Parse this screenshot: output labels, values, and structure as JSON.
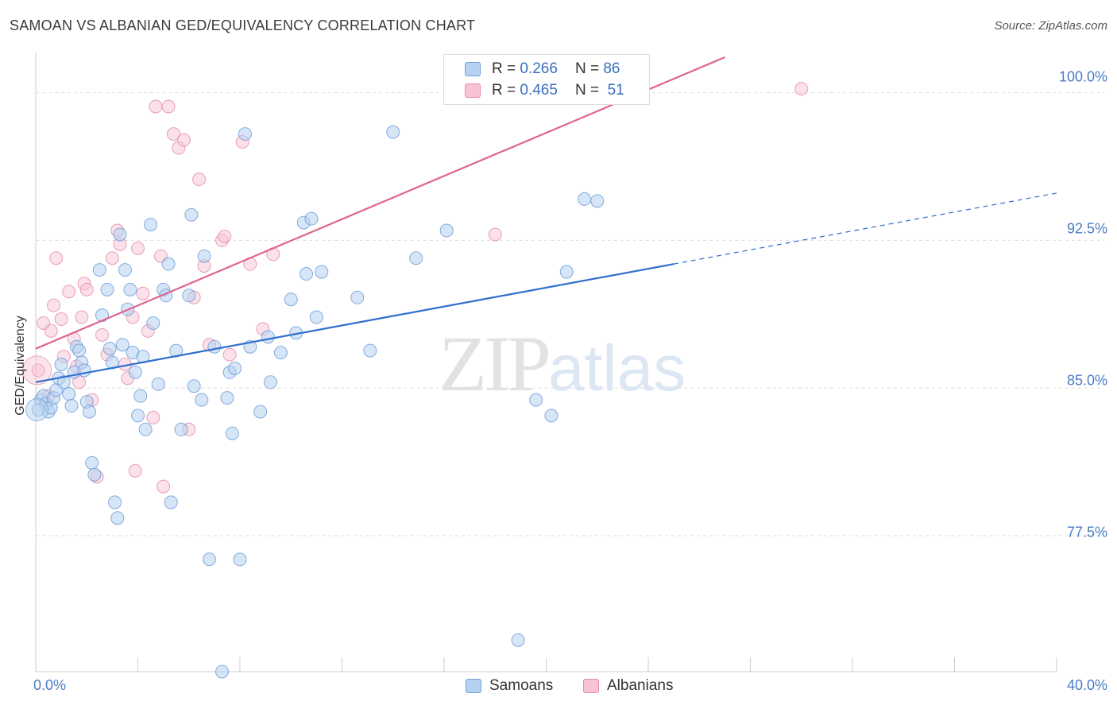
{
  "header": {
    "title": "SAMOAN VS ALBANIAN GED/EQUIVALENCY CORRELATION CHART",
    "source": "Source: ZipAtlas.com"
  },
  "watermark": {
    "zip": "ZIP",
    "atlas": "atlas"
  },
  "legend": {
    "rows": [
      {
        "r_label": "R =",
        "r_value": "0.266",
        "n_label": "N =",
        "n_value": "86"
      },
      {
        "r_label": "R =",
        "r_value": "0.465",
        "n_label": "N =",
        "n_value": "51"
      }
    ]
  },
  "bottom_legend": {
    "samoans": "Samoans",
    "albanians": "Albanians"
  },
  "axis": {
    "ylabel": "GED/Equivalency",
    "y_ticks": [
      "100.0%",
      "92.5%",
      "85.0%",
      "77.5%"
    ],
    "x_ticks": [
      "0.0%",
      "40.0%"
    ]
  },
  "colors": {
    "samoan_fill": "#b7d1f0",
    "samoan_stroke": "#6f9fd8",
    "samoan_line": "#2f6fce",
    "albanian_fill": "#f8c3d3",
    "albanian_stroke": "#e48aa8",
    "albanian_line": "#e0648e"
  },
  "chart_data": {
    "type": "scatter",
    "title": "SAMOAN VS ALBANIAN GED/EQUIVALENCY CORRELATION CHART",
    "xlabel": "",
    "ylabel": "GED/Equivalency",
    "xlim": [
      0,
      40
    ],
    "ylim": [
      70.6,
      101.8
    ],
    "y_gridlines": [
      77.5,
      85.0,
      92.5,
      100.0
    ],
    "legend_position": "top-center",
    "series": [
      {
        "name": "Samoans",
        "R": 0.266,
        "N": 86,
        "trend": {
          "x": [
            0,
            25
          ],
          "y": [
            85.3,
            91.3
          ],
          "dashed_to_x": 40,
          "dashed_to_y": 94.9
        },
        "points": [
          [
            0.2,
            84.4
          ],
          [
            0.3,
            84.6
          ],
          [
            0.4,
            84.2
          ],
          [
            0.5,
            83.8
          ],
          [
            0.6,
            84.0
          ],
          [
            0.7,
            84.5
          ],
          [
            0.8,
            84.9
          ],
          [
            0.9,
            85.5
          ],
          [
            1.0,
            86.2
          ],
          [
            1.1,
            85.3
          ],
          [
            1.3,
            84.7
          ],
          [
            1.4,
            84.1
          ],
          [
            1.5,
            85.8
          ],
          [
            1.6,
            87.1
          ],
          [
            1.7,
            86.9
          ],
          [
            1.8,
            86.3
          ],
          [
            1.9,
            85.9
          ],
          [
            2.0,
            84.3
          ],
          [
            2.1,
            83.8
          ],
          [
            2.2,
            81.2
          ],
          [
            2.3,
            80.6
          ],
          [
            2.5,
            91.0
          ],
          [
            2.6,
            88.7
          ],
          [
            2.8,
            90.0
          ],
          [
            2.9,
            87.0
          ],
          [
            3.0,
            86.3
          ],
          [
            3.1,
            79.2
          ],
          [
            3.2,
            78.4
          ],
          [
            3.3,
            92.8
          ],
          [
            3.4,
            87.2
          ],
          [
            3.5,
            91.0
          ],
          [
            3.6,
            89.0
          ],
          [
            3.7,
            90.0
          ],
          [
            3.8,
            86.8
          ],
          [
            3.9,
            85.8
          ],
          [
            4.0,
            83.6
          ],
          [
            4.1,
            84.6
          ],
          [
            4.2,
            86.6
          ],
          [
            4.3,
            82.9
          ],
          [
            4.5,
            93.3
          ],
          [
            4.6,
            88.3
          ],
          [
            4.8,
            85.2
          ],
          [
            5.0,
            90.0
          ],
          [
            5.1,
            89.7
          ],
          [
            5.2,
            91.3
          ],
          [
            5.3,
            79.2
          ],
          [
            5.5,
            86.9
          ],
          [
            5.7,
            82.9
          ],
          [
            6.0,
            89.7
          ],
          [
            6.1,
            93.8
          ],
          [
            6.2,
            85.1
          ],
          [
            6.5,
            84.4
          ],
          [
            6.6,
            91.7
          ],
          [
            6.8,
            76.3
          ],
          [
            7.0,
            87.1
          ],
          [
            7.3,
            70.6
          ],
          [
            7.5,
            84.5
          ],
          [
            7.6,
            85.8
          ],
          [
            7.7,
            82.7
          ],
          [
            7.8,
            86.0
          ],
          [
            8.0,
            76.3
          ],
          [
            8.2,
            97.9
          ],
          [
            8.4,
            87.1
          ],
          [
            8.8,
            83.8
          ],
          [
            9.1,
            87.6
          ],
          [
            9.2,
            85.3
          ],
          [
            9.6,
            86.8
          ],
          [
            10.0,
            89.5
          ],
          [
            10.2,
            87.8
          ],
          [
            10.5,
            93.4
          ],
          [
            10.6,
            90.8
          ],
          [
            10.8,
            93.6
          ],
          [
            11.0,
            88.6
          ],
          [
            11.2,
            90.9
          ],
          [
            12.6,
            89.6
          ],
          [
            13.1,
            86.9
          ],
          [
            14.0,
            98.0
          ],
          [
            14.9,
            91.6
          ],
          [
            16.1,
            93.0
          ],
          [
            18.9,
            72.2
          ],
          [
            19.6,
            84.4
          ],
          [
            20.2,
            83.6
          ],
          [
            20.8,
            90.9
          ],
          [
            21.5,
            94.6
          ],
          [
            22.0,
            94.5
          ],
          [
            0.1,
            83.9
          ]
        ]
      },
      {
        "name": "Albanians",
        "R": 0.465,
        "N": 51,
        "trend": {
          "x": [
            0,
            27
          ],
          "y": [
            87.0,
            101.8
          ]
        },
        "points": [
          [
            0.1,
            85.9
          ],
          [
            0.3,
            88.3
          ],
          [
            0.5,
            84.6
          ],
          [
            0.6,
            87.9
          ],
          [
            0.7,
            89.2
          ],
          [
            0.8,
            91.6
          ],
          [
            1.0,
            88.5
          ],
          [
            1.1,
            86.6
          ],
          [
            1.3,
            89.9
          ],
          [
            1.5,
            87.5
          ],
          [
            1.6,
            86.1
          ],
          [
            1.7,
            85.3
          ],
          [
            1.8,
            88.6
          ],
          [
            1.9,
            90.3
          ],
          [
            2.0,
            90.0
          ],
          [
            2.2,
            84.4
          ],
          [
            2.4,
            80.5
          ],
          [
            2.6,
            87.7
          ],
          [
            2.8,
            86.7
          ],
          [
            3.0,
            91.6
          ],
          [
            3.2,
            93.0
          ],
          [
            3.3,
            92.3
          ],
          [
            3.5,
            86.2
          ],
          [
            3.6,
            85.5
          ],
          [
            3.8,
            88.6
          ],
          [
            3.9,
            80.8
          ],
          [
            4.0,
            92.1
          ],
          [
            4.2,
            89.8
          ],
          [
            4.4,
            87.9
          ],
          [
            4.6,
            83.5
          ],
          [
            4.7,
            99.3
          ],
          [
            4.9,
            91.7
          ],
          [
            5.0,
            80.0
          ],
          [
            5.2,
            99.3
          ],
          [
            5.4,
            97.9
          ],
          [
            5.6,
            97.2
          ],
          [
            5.8,
            97.6
          ],
          [
            6.0,
            82.9
          ],
          [
            6.2,
            89.6
          ],
          [
            6.4,
            95.6
          ],
          [
            6.6,
            91.2
          ],
          [
            6.8,
            87.2
          ],
          [
            7.3,
            92.5
          ],
          [
            7.4,
            92.7
          ],
          [
            7.6,
            86.7
          ],
          [
            8.1,
            97.5
          ],
          [
            8.4,
            91.3
          ],
          [
            8.9,
            88.0
          ],
          [
            9.3,
            91.8
          ],
          [
            18.0,
            92.8
          ],
          [
            30.0,
            100.2
          ]
        ]
      }
    ]
  }
}
